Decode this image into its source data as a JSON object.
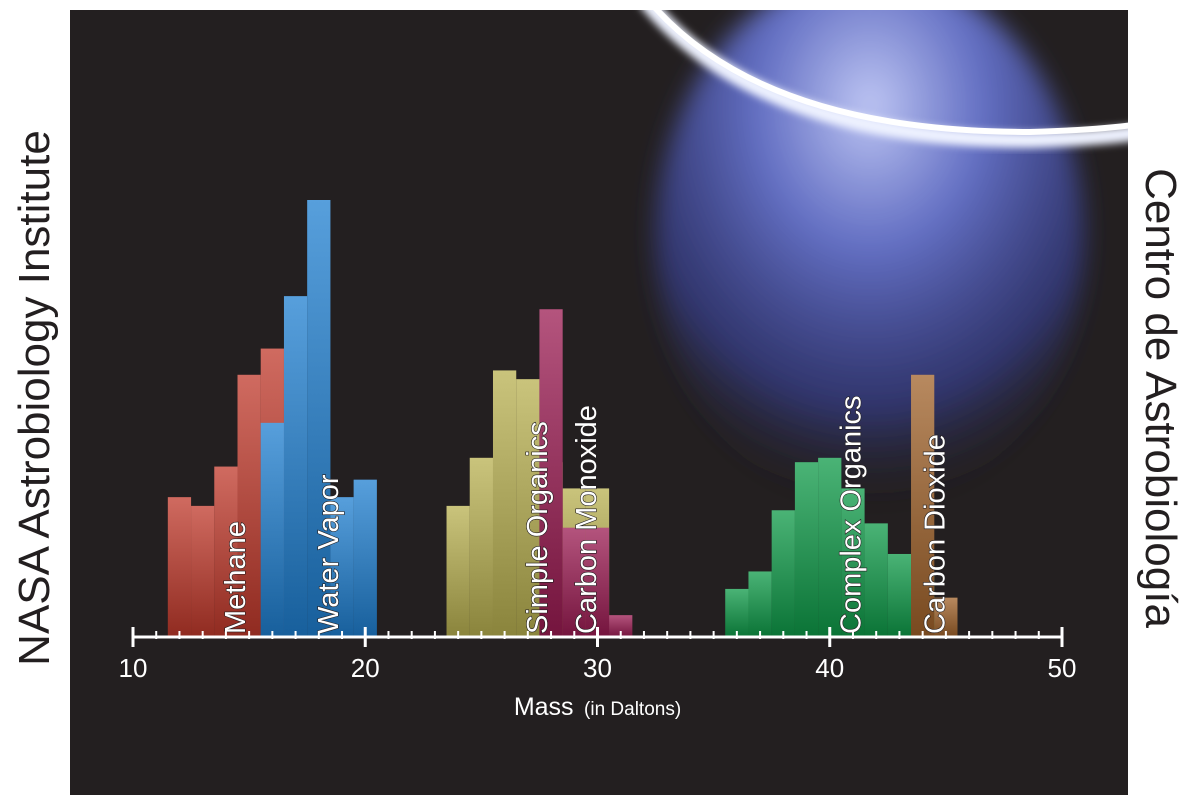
{
  "side_labels": {
    "left": "NASA Astrobiology Institute",
    "right": "Centro de Astrobiología"
  },
  "chart_data": {
    "type": "bar",
    "title": "",
    "xlabel": "Mass",
    "xlabel_unit": "(in Daltons)",
    "ylabel": "",
    "xlim": [
      10,
      50
    ],
    "x_ticks": [
      10,
      20,
      30,
      40,
      50
    ],
    "x_tick_labels": [
      "10",
      "20",
      "30",
      "40",
      "50"
    ],
    "minor_tick_step": 1,
    "ylim": [
      0,
      100
    ],
    "grid": false,
    "series": [
      {
        "name": "Methane",
        "color": "#c0392b",
        "bin_start": 11.5,
        "values": [
          32,
          30,
          39,
          60,
          66
        ]
      },
      {
        "name": "Water Vapor",
        "color": "#1f7fd0",
        "bin_start": 15.5,
        "values": [
          49,
          78,
          100,
          32,
          36
        ]
      },
      {
        "name": "Simple Organics",
        "color": "#b8b050",
        "bin_start": 23.5,
        "values": [
          30,
          41,
          61,
          59,
          40,
          34,
          34
        ]
      },
      {
        "name": "Carbon Monoxide",
        "color": "#9b1b52",
        "bin_start": 27.5,
        "values": [
          75,
          25,
          25,
          5
        ]
      },
      {
        "name": "Complex Organics",
        "color": "#0e9a48",
        "bin_start": 35.5,
        "values": [
          11,
          15,
          29,
          40,
          41,
          34,
          26,
          19,
          14,
          4
        ]
      },
      {
        "name": "Carbon Dioxide",
        "color": "#a0622a",
        "bin_start": 43.5,
        "values": [
          60,
          9
        ]
      }
    ]
  },
  "colors": {
    "background": "#231f20",
    "axis": "#ffffff",
    "plume": "#5c6ad6"
  }
}
